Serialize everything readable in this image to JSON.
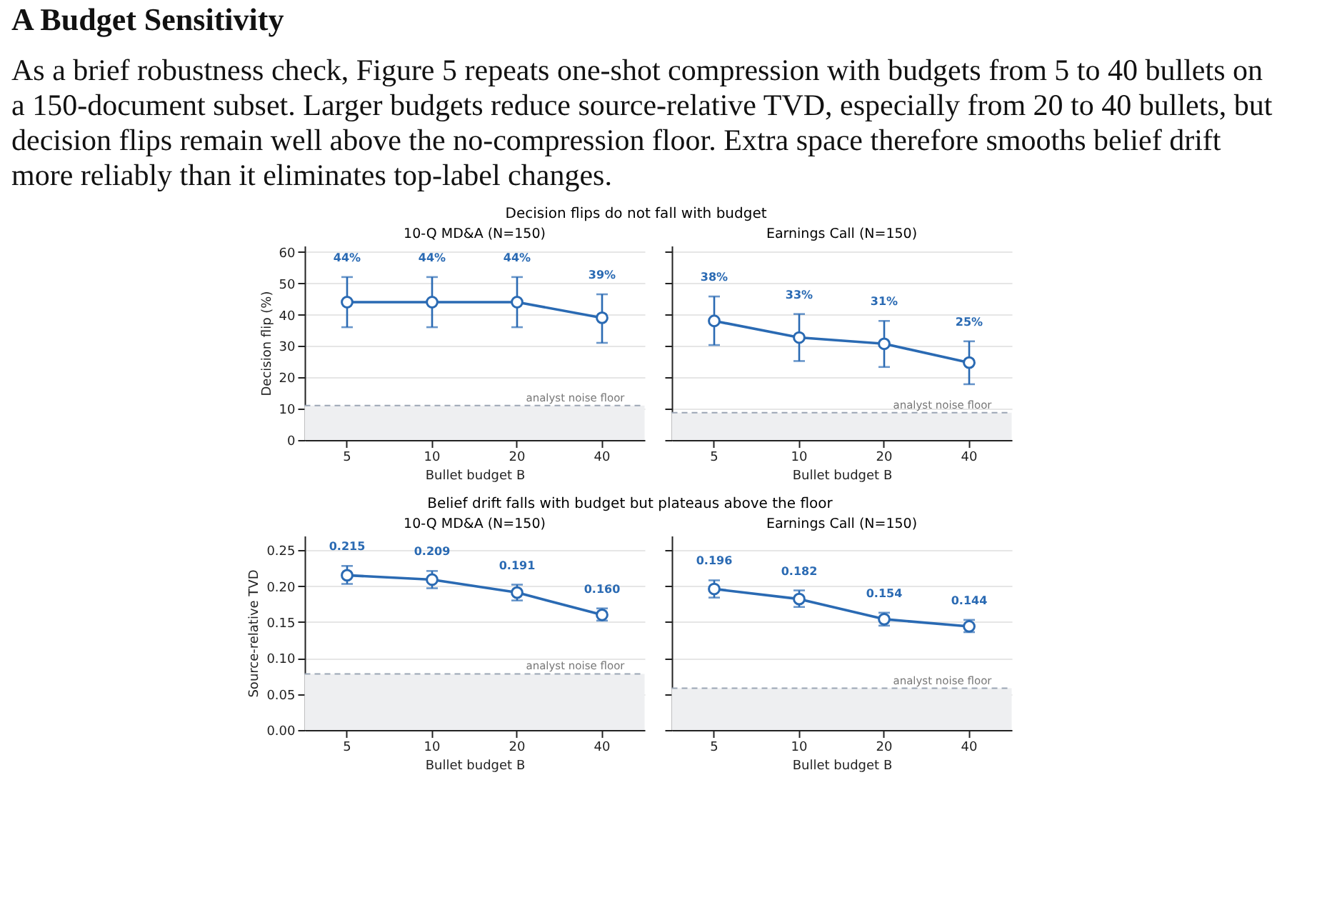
{
  "chart_data": [
    {
      "type": "line",
      "title": "10-Q MD&A  (N=150)",
      "xlabel": "Bullet budget B",
      "ylabel": "Decision flip (%)",
      "categories": [
        "5",
        "10",
        "20",
        "40"
      ],
      "series": [
        {
          "color": "#2a6ab3",
          "values": [
            44,
            44,
            44,
            39
          ],
          "errors": [
            [
              36,
              52
            ],
            [
              36,
              52
            ],
            [
              36,
              52
            ],
            [
              31,
              46.5
            ]
          ],
          "value_labels": [
            "44%",
            "44%",
            "44%",
            "39%"
          ]
        }
      ],
      "ylim": [
        0,
        62
      ],
      "yticks": [
        0,
        10,
        20,
        30,
        40,
        50,
        60
      ],
      "grid": "y",
      "marker": "circle",
      "line_style": "solid",
      "ref_lines": [
        {
          "axis": "y",
          "value": 11,
          "label": "analyst noise floor",
          "color": "#9aa5b4",
          "line_style": "dashed"
        }
      ],
      "bands": [
        {
          "axis": "y",
          "from": 0,
          "to": 11,
          "color": "#eeeff1"
        }
      ],
      "annotations": [
        "A   Budget Sensitivity",
        "As a brief robustness check, Figure 5 repeats one-shot compression with budgets from 5 to 40 bullets on a 150-document subset. Larger budgets reduce source-relative TVD, especially from 20 to 40 bullets, but decision flips remain well above the no-compression floor. Extra space therefore smooths belief drift more reliably than it eliminates top-label changes.",
        "Decision flips do not fall with budget"
      ]
    },
    {
      "type": "line",
      "title": "Earnings Call  (N=150)",
      "xlabel": "Bullet budget B",
      "categories": [
        "5",
        "10",
        "20",
        "40"
      ],
      "series": [
        {
          "color": "#2a6ab3",
          "values": [
            38,
            32.7,
            30.7,
            24.7
          ],
          "errors": [
            [
              30.3,
              45.8
            ],
            [
              25.2,
              40.2
            ],
            [
              23.3,
              38
            ],
            [
              17.8,
              31.5
            ]
          ],
          "value_labels": [
            "38%",
            "33%",
            "31%",
            "25%"
          ]
        }
      ],
      "ylim": [
        0,
        62
      ],
      "yticks": [
        0,
        10,
        20,
        30,
        40,
        50,
        60
      ],
      "tick_labels": "x",
      "grid": "y",
      "marker": "circle",
      "line_style": "solid",
      "ref_lines": [
        {
          "axis": "y",
          "value": 8.7,
          "label": "analyst noise floor",
          "color": "#9aa5b4",
          "line_style": "dashed"
        }
      ],
      "bands": [
        {
          "axis": "y",
          "from": 0,
          "to": 8.7,
          "color": "#eeeff1"
        }
      ]
    },
    {
      "type": "line",
      "title": "10-Q MD&A  (N=150)",
      "xlabel": "Bullet budget B",
      "ylabel": "Source-relative TVD",
      "categories": [
        "5",
        "10",
        "20",
        "40"
      ],
      "series": [
        {
          "color": "#2a6ab3",
          "values": [
            0.215,
            0.209,
            0.191,
            0.16
          ],
          "errors": [
            [
              0.203,
              0.228
            ],
            [
              0.197,
              0.221
            ],
            [
              0.18,
              0.202
            ],
            [
              0.152,
              0.169
            ]
          ],
          "value_labels": [
            "0.215",
            "0.209",
            "0.191",
            "0.160"
          ]
        }
      ],
      "ylim": [
        0,
        0.27
      ],
      "yticks": [
        {
          "value": 0,
          "label": "0.00"
        },
        {
          "value": 0.05,
          "label": "0.05"
        },
        {
          "value": 0.1,
          "label": "0.10"
        },
        {
          "value": 0.15,
          "label": "0.15"
        },
        {
          "value": 0.2,
          "label": "0.20"
        },
        {
          "value": 0.25,
          "label": "0.25"
        }
      ],
      "grid": "y",
      "marker": "circle",
      "line_style": "solid",
      "ref_lines": [
        {
          "axis": "y",
          "value": 0.078,
          "label": "analyst noise floor",
          "color": "#9aa5b4",
          "line_style": "dashed"
        }
      ],
      "bands": [
        {
          "axis": "y",
          "from": 0,
          "to": 0.078,
          "color": "#eeeff1"
        }
      ],
      "annotations": [
        "Belief drift falls with budget but plateaus above the floor"
      ]
    },
    {
      "type": "line",
      "title": "Earnings Call  (N=150)",
      "xlabel": "Bullet budget B",
      "categories": [
        "5",
        "10",
        "20",
        "40"
      ],
      "series": [
        {
          "color": "#2a6ab3",
          "values": [
            0.196,
            0.182,
            0.154,
            0.144
          ],
          "errors": [
            [
              0.184,
              0.208
            ],
            [
              0.171,
              0.194
            ],
            [
              0.145,
              0.163
            ],
            [
              0.136,
              0.153
            ]
          ],
          "value_labels": [
            "0.196",
            "0.182",
            "0.154",
            "0.144"
          ]
        }
      ],
      "ylim": [
        0,
        0.27
      ],
      "yticks": [
        0,
        0.05,
        0.1,
        0.15,
        0.2,
        0.25
      ],
      "tick_labels": "x",
      "grid": "y",
      "marker": "circle",
      "line_style": "solid",
      "ref_lines": [
        {
          "axis": "y",
          "value": 0.058,
          "label": "analyst noise floor",
          "color": "#9aa5b4",
          "line_style": "dashed"
        }
      ],
      "bands": [
        {
          "axis": "y",
          "from": 0,
          "to": 0.058,
          "color": "#eeeff1"
        }
      ]
    }
  ]
}
